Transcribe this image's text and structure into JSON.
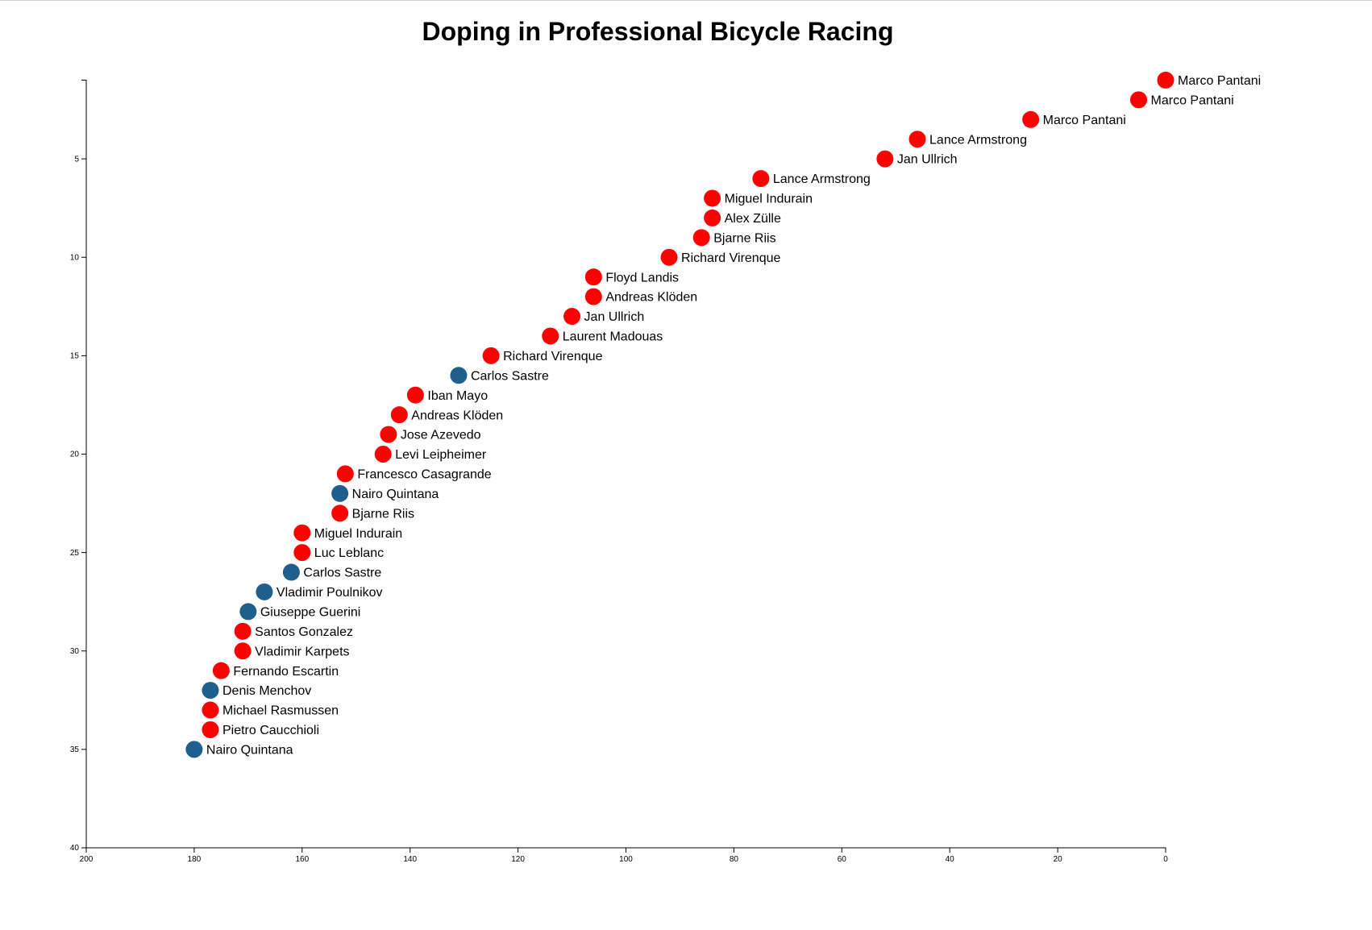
{
  "chart_data": {
    "type": "scatter",
    "title": "Doping in Professional Bicycle Racing",
    "xlabel": "",
    "ylabel": "",
    "xlim": [
      200,
      0
    ],
    "ylim": [
      0,
      40
    ],
    "x_ticks": [
      "200",
      "180",
      "160",
      "140",
      "120",
      "100",
      "80",
      "60",
      "40",
      "20",
      "0"
    ],
    "y_ticks": [
      "5",
      "10",
      "15",
      "20",
      "25",
      "30",
      "35",
      "40"
    ],
    "grid": false,
    "colors": {
      "doping": "#ff0000",
      "no_doping": "#1f5f8b"
    },
    "points": [
      {
        "x": 0,
        "y": 1,
        "name": "Marco Pantani",
        "doping": true
      },
      {
        "x": 5,
        "y": 2,
        "name": "Marco Pantani",
        "doping": true
      },
      {
        "x": 25,
        "y": 3,
        "name": "Marco Pantani",
        "doping": true
      },
      {
        "x": 46,
        "y": 4,
        "name": "Lance Armstrong",
        "doping": true
      },
      {
        "x": 52,
        "y": 5,
        "name": "Jan Ullrich",
        "doping": true
      },
      {
        "x": 75,
        "y": 6,
        "name": "Lance Armstrong",
        "doping": true
      },
      {
        "x": 84,
        "y": 7,
        "name": "Miguel Indurain",
        "doping": true
      },
      {
        "x": 84,
        "y": 8,
        "name": "Alex Zülle",
        "doping": true
      },
      {
        "x": 86,
        "y": 9,
        "name": "Bjarne Riis",
        "doping": true
      },
      {
        "x": 92,
        "y": 10,
        "name": "Richard Virenque",
        "doping": true
      },
      {
        "x": 106,
        "y": 11,
        "name": "Floyd Landis",
        "doping": true
      },
      {
        "x": 106,
        "y": 12,
        "name": "Andreas Klöden",
        "doping": true
      },
      {
        "x": 110,
        "y": 13,
        "name": "Jan Ullrich",
        "doping": true
      },
      {
        "x": 114,
        "y": 14,
        "name": "Laurent Madouas",
        "doping": true
      },
      {
        "x": 125,
        "y": 15,
        "name": "Richard Virenque",
        "doping": true
      },
      {
        "x": 131,
        "y": 16,
        "name": "Carlos Sastre",
        "doping": false
      },
      {
        "x": 139,
        "y": 17,
        "name": "Iban Mayo",
        "doping": true
      },
      {
        "x": 142,
        "y": 18,
        "name": "Andreas Klöden",
        "doping": true
      },
      {
        "x": 144,
        "y": 19,
        "name": "Jose Azevedo",
        "doping": true
      },
      {
        "x": 145,
        "y": 20,
        "name": "Levi Leipheimer",
        "doping": true
      },
      {
        "x": 152,
        "y": 21,
        "name": "Francesco Casagrande",
        "doping": true
      },
      {
        "x": 153,
        "y": 22,
        "name": "Nairo Quintana",
        "doping": false
      },
      {
        "x": 153,
        "y": 23,
        "name": "Bjarne Riis",
        "doping": true
      },
      {
        "x": 160,
        "y": 24,
        "name": "Miguel Indurain",
        "doping": true
      },
      {
        "x": 160,
        "y": 25,
        "name": "Luc Leblanc",
        "doping": true
      },
      {
        "x": 162,
        "y": 26,
        "name": "Carlos Sastre",
        "doping": false
      },
      {
        "x": 167,
        "y": 27,
        "name": "Vladimir Poulnikov",
        "doping": false
      },
      {
        "x": 170,
        "y": 28,
        "name": "Giuseppe Guerini",
        "doping": false
      },
      {
        "x": 171,
        "y": 29,
        "name": "Santos Gonzalez",
        "doping": true
      },
      {
        "x": 171,
        "y": 30,
        "name": "Vladimir Karpets",
        "doping": true
      },
      {
        "x": 175,
        "y": 31,
        "name": "Fernando Escartin",
        "doping": true
      },
      {
        "x": 177,
        "y": 32,
        "name": "Denis Menchov",
        "doping": false
      },
      {
        "x": 177,
        "y": 33,
        "name": "Michael Rasmussen",
        "doping": true
      },
      {
        "x": 177,
        "y": 34,
        "name": "Pietro Caucchioli",
        "doping": true
      },
      {
        "x": 180,
        "y": 35,
        "name": "Nairo Quintana",
        "doping": false
      }
    ]
  }
}
